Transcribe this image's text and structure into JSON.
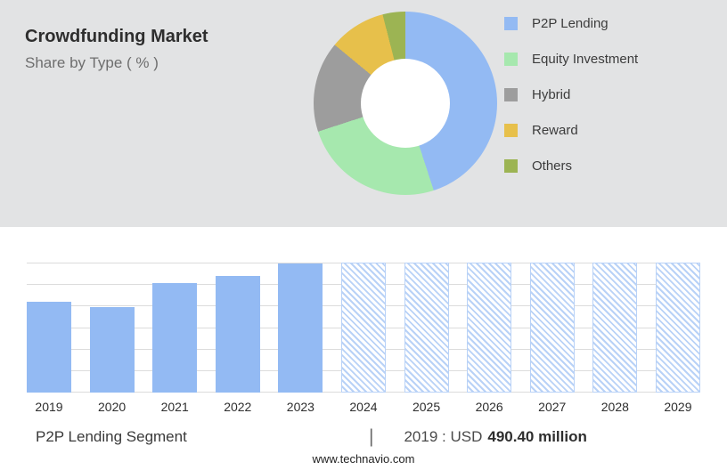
{
  "header": {
    "title": "Crowdfunding Market",
    "subtitle": "Share by Type ( % )"
  },
  "colors": {
    "panel_background": "#e2e3e4",
    "history_bar": "#93baf3",
    "forecast_stripe": "#b9d2f7",
    "gridline": "#dcdcdc"
  },
  "chart_data": [
    {
      "type": "pie",
      "title": "Crowdfunding Market Share by Type ( % )",
      "donut": true,
      "legend_position": "right",
      "labels": [
        "P2P Lending",
        "Equity Investment",
        "Hybrid",
        "Reward",
        "Others"
      ],
      "values": [
        45,
        25,
        16,
        10,
        4
      ],
      "colors": [
        "#93baf3",
        "#a6e8ae",
        "#9d9d9d",
        "#e7c04b",
        "#9cb453"
      ]
    },
    {
      "type": "bar",
      "title": "P2P Lending Segment",
      "categories": [
        "2019",
        "2020",
        "2021",
        "2022",
        "2023",
        "2024",
        "2025",
        "2026",
        "2027",
        "2028",
        "2029"
      ],
      "values_pct_of_plot": [
        70,
        66,
        84,
        90,
        99,
        100,
        100,
        100,
        100,
        100,
        100
      ],
      "bar_styles": [
        "solid",
        "solid",
        "solid",
        "solid",
        "solid",
        "hatched",
        "hatched",
        "hatched",
        "hatched",
        "hatched",
        "hatched"
      ],
      "labeled_value": {
        "year": "2019",
        "value": "USD 490.40 million"
      },
      "grid": true,
      "gridline_count": 7
    }
  ],
  "footer": {
    "segment_label": "P2P Lending Segment",
    "separator": "|",
    "value_prefix": "2019 : USD",
    "value_bold": "490.40 million",
    "website": "www.technavio.com"
  }
}
